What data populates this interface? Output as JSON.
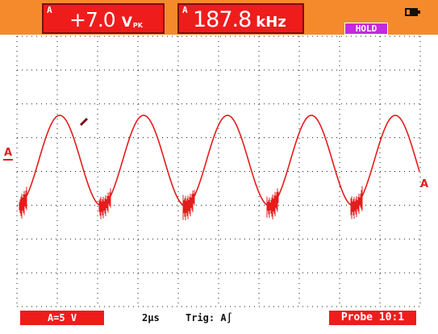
{
  "header": {
    "voltage_channel": "A",
    "voltage_value": "+7.0",
    "voltage_unit": "V",
    "voltage_unit_sub": "PK",
    "frequency_channel": "A",
    "frequency_value": "187.8",
    "frequency_unit": "kHz",
    "hold_label": "HOLD",
    "battery_icon": "battery-icon"
  },
  "plot": {
    "channel_marker_left": "A",
    "channel_marker_right": "A",
    "grid_divisions_x": 10,
    "grid_divisions_y": 8,
    "grid_color": "#1a1a1a",
    "trace_color": "#e41c1c",
    "trace_dark_color": "#7a1010"
  },
  "status_bar": {
    "channel_scale": "A=5 V",
    "timebase": "2µs",
    "trigger": "Trig: A∫",
    "probe": "Probe 10:1"
  },
  "colors": {
    "top_bar": "#f58a2d",
    "readout_bg": "#ef1c1c",
    "hold_bg": "#c42ae0",
    "background": "#ffffff"
  }
}
